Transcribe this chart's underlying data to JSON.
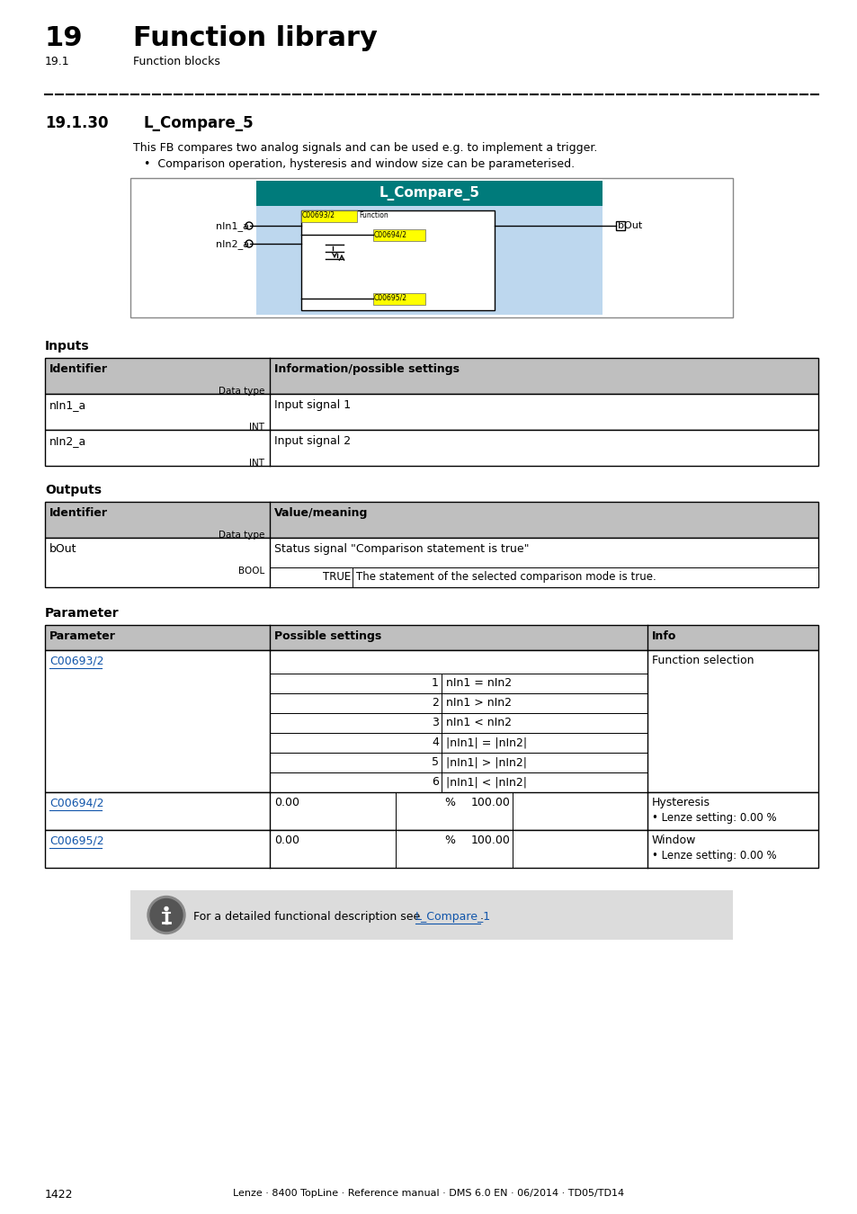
{
  "page_num": "1422",
  "footer_text": "Lenze · 8400 TopLine · Reference manual · DMS 6.0 EN · 06/2014 · TD05/TD14",
  "header_num": "19",
  "header_title": "Function library",
  "header_sub_num": "19.1",
  "header_sub_title": "Function blocks",
  "section_num": "19.1.30",
  "section_title": "L_Compare_5",
  "description1": "This FB compares two analog signals and can be used e.g. to implement a trigger.",
  "bullet1": "•  Comparison operation, hysteresis and window size can be parameterised.",
  "inputs_title": "Inputs",
  "outputs_title": "Outputs",
  "parameter_title": "Parameter",
  "teal_color": "#007B7B",
  "blue_link_color": "#1155AA",
  "light_blue_bg": "#BDD7EE",
  "yellow_highlight": "#FFFF00",
  "gray_header": "#BFBFBF",
  "note_bg": "#DCDCDC",
  "white": "#FFFFFF",
  "black": "#000000",
  "sub_labels": [
    [
      "1",
      "nIn1 = nIn2"
    ],
    [
      "2",
      "nIn1 > nIn2"
    ],
    [
      "3",
      "nIn1 < nIn2"
    ],
    [
      "4",
      "|nIn1| = |nIn2|"
    ],
    [
      "5",
      "|nIn1| > |nIn2|"
    ],
    [
      "6",
      "|nIn1| < |nIn2|"
    ]
  ]
}
